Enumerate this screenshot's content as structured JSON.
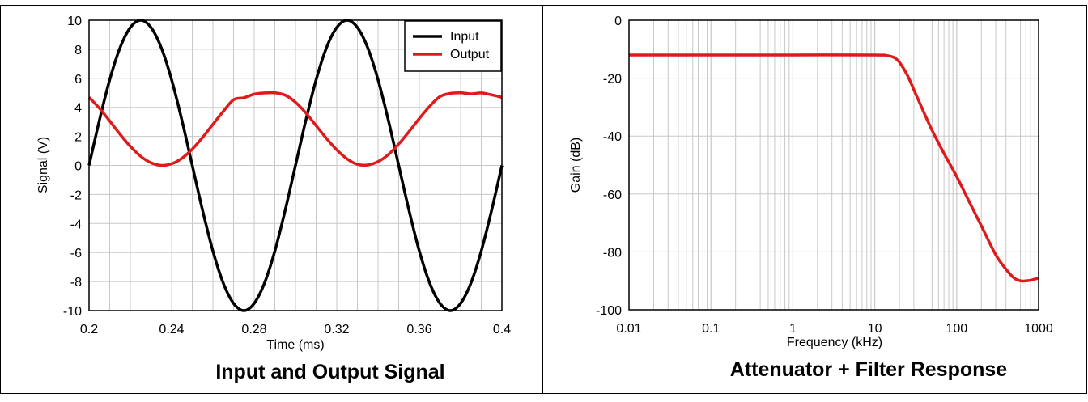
{
  "chart_data": [
    {
      "type": "line",
      "title": "Input and Output Signal",
      "xlabel": "Time (ms)",
      "ylabel": "Signal (V)",
      "xlim": [
        0.2,
        0.4
      ],
      "ylim": [
        -10,
        10
      ],
      "xticks": [
        "0.2",
        "0.24",
        "0.28",
        "0.32",
        "0.36",
        "0.4"
      ],
      "yticks": [
        "10",
        "8",
        "6",
        "4",
        "2",
        "0",
        "-2",
        "-4",
        "-6",
        "-8",
        "-10"
      ],
      "grid": true,
      "legend_position": "top-right",
      "series": [
        {
          "name": "Input",
          "color": "#000000",
          "x": [
            0.2,
            0.205,
            0.21,
            0.215,
            0.22,
            0.225,
            0.23,
            0.235,
            0.24,
            0.245,
            0.25,
            0.255,
            0.26,
            0.265,
            0.27,
            0.275,
            0.28,
            0.285,
            0.29,
            0.295,
            0.3,
            0.305,
            0.31,
            0.315,
            0.32,
            0.325,
            0.33,
            0.335,
            0.34,
            0.345,
            0.35,
            0.355,
            0.36,
            0.365,
            0.37,
            0.375,
            0.38,
            0.385,
            0.39,
            0.395,
            0.4
          ],
          "y": [
            0,
            3.1,
            5.9,
            8.1,
            9.5,
            10,
            9.5,
            8.1,
            5.9,
            3.1,
            0,
            -3.1,
            -5.9,
            -8.1,
            -9.5,
            -10,
            -9.5,
            -8.1,
            -5.9,
            -3.1,
            0,
            3.1,
            5.9,
            8.1,
            9.5,
            10,
            9.5,
            8.1,
            5.9,
            3.1,
            0,
            -3.1,
            -5.9,
            -8.1,
            -9.5,
            -10,
            -9.5,
            -8.1,
            -5.9,
            -3.1,
            0
          ]
        },
        {
          "name": "Output",
          "color": "#e0191b",
          "x": [
            0.2,
            0.205,
            0.21,
            0.215,
            0.22,
            0.225,
            0.23,
            0.235,
            0.24,
            0.245,
            0.25,
            0.255,
            0.26,
            0.265,
            0.27,
            0.275,
            0.28,
            0.285,
            0.29,
            0.295,
            0.3,
            0.305,
            0.31,
            0.315,
            0.32,
            0.325,
            0.33,
            0.335,
            0.34,
            0.345,
            0.35,
            0.355,
            0.36,
            0.365,
            0.37,
            0.375,
            0.38,
            0.385,
            0.39,
            0.395,
            0.4
          ],
          "y": [
            4.69,
            3.94,
            3.06,
            2.15,
            1.31,
            0.63,
            0.18,
            0.0,
            0.11,
            0.49,
            1.12,
            1.93,
            2.83,
            3.72,
            4.52,
            4.66,
            4.91,
            4.99,
            5.0,
            4.84,
            4.35,
            3.62,
            2.74,
            1.86,
            1.07,
            0.45,
            0.07,
            0.03,
            0.26,
            0.75,
            1.47,
            2.33,
            3.23,
            4.07,
            4.74,
            4.96,
            5.0,
            4.93,
            4.99,
            4.86,
            4.69
          ]
        }
      ]
    },
    {
      "type": "line",
      "title": "Attenuator + Filter Response",
      "xlabel": "Frequency (kHz)",
      "ylabel": "Gain (dB)",
      "xscale": "log",
      "xlim": [
        0.01,
        1000
      ],
      "ylim": [
        -100,
        0
      ],
      "xticks": [
        "0.01",
        "0.1",
        "1",
        "10",
        "100",
        "1000"
      ],
      "yticks": [
        "0",
        "-20",
        "-40",
        "-60",
        "-80",
        "-100"
      ],
      "grid": true,
      "series": [
        {
          "color": "#e0191b",
          "x": [
            0.01,
            0.1,
            1,
            10,
            14,
            17,
            20,
            25,
            30,
            40,
            50,
            70,
            100,
            150,
            200,
            300,
            400,
            500,
            600,
            700,
            800,
            1000
          ],
          "y": [
            -12,
            -12,
            -12,
            -12,
            -12.2,
            -12.8,
            -14.5,
            -19,
            -24,
            -32,
            -38,
            -46,
            -54,
            -64,
            -71,
            -81,
            -86,
            -89,
            -90,
            -90,
            -89.8,
            -89
          ]
        }
      ]
    }
  ]
}
